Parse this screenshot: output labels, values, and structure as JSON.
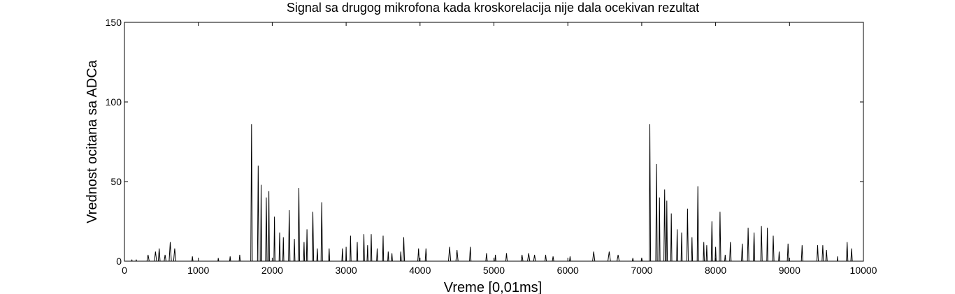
{
  "chart_data": {
    "type": "line",
    "title": "Signal sa drugog mikrofona kada kroskorelacija nije dala ocekivan rezultat",
    "xlabel": "Vreme [0,01ms]",
    "ylabel": "Vrednost ocitana sa ADCa",
    "xlim": [
      0,
      10000
    ],
    "ylim": [
      0,
      150
    ],
    "xticks": [
      "0",
      "1000",
      "2000",
      "3000",
      "4000",
      "5000",
      "6000",
      "7000",
      "8000",
      "9000",
      "10000"
    ],
    "yticks": [
      "0",
      "50",
      "100",
      "150"
    ],
    "grid": false,
    "line_color": "#000000",
    "series": [
      {
        "peaks": [
          [
            100,
            1,
            8
          ],
          [
            160,
            1,
            8
          ],
          [
            320,
            4,
            30
          ],
          [
            420,
            6,
            30
          ],
          [
            470,
            8,
            25
          ],
          [
            550,
            4,
            25
          ],
          [
            620,
            12,
            30
          ],
          [
            680,
            8,
            30
          ],
          [
            920,
            3,
            15
          ],
          [
            1270,
            2,
            10
          ],
          [
            1430,
            3,
            15
          ],
          [
            1560,
            4,
            15
          ],
          [
            1720,
            86,
            20
          ],
          [
            1810,
            60,
            20
          ],
          [
            1850,
            48,
            15
          ],
          [
            1920,
            40,
            20
          ],
          [
            1955,
            44,
            15
          ],
          [
            2030,
            28,
            15
          ],
          [
            2100,
            18,
            15
          ],
          [
            2150,
            15,
            15
          ],
          [
            2230,
            32,
            20
          ],
          [
            2300,
            14,
            15
          ],
          [
            2360,
            46,
            20
          ],
          [
            2430,
            12,
            15
          ],
          [
            2470,
            20,
            15
          ],
          [
            2550,
            31,
            20
          ],
          [
            2610,
            8,
            15
          ],
          [
            2670,
            37,
            20
          ],
          [
            2770,
            8,
            15
          ],
          [
            2950,
            8,
            15
          ],
          [
            3000,
            9,
            10
          ],
          [
            3060,
            16,
            15
          ],
          [
            3150,
            12,
            15
          ],
          [
            3240,
            17,
            15
          ],
          [
            3290,
            10,
            15
          ],
          [
            3340,
            17,
            15
          ],
          [
            3420,
            8,
            15
          ],
          [
            3500,
            16,
            15
          ],
          [
            3570,
            6,
            15
          ],
          [
            3620,
            5,
            15
          ],
          [
            3740,
            6,
            15
          ],
          [
            3780,
            15,
            20
          ],
          [
            3980,
            8,
            20
          ],
          [
            4080,
            8,
            20
          ],
          [
            4400,
            9,
            30
          ],
          [
            4500,
            7,
            30
          ],
          [
            4680,
            9,
            20
          ],
          [
            4900,
            5,
            20
          ],
          [
            5020,
            4,
            15
          ],
          [
            5170,
            5,
            20
          ],
          [
            5380,
            4,
            25
          ],
          [
            5470,
            5,
            30
          ],
          [
            5550,
            4,
            25
          ],
          [
            5700,
            4,
            20
          ],
          [
            5800,
            3,
            20
          ],
          [
            6030,
            3,
            15
          ],
          [
            6350,
            6,
            30
          ],
          [
            6560,
            6,
            35
          ],
          [
            6680,
            4,
            30
          ],
          [
            6880,
            2,
            15
          ],
          [
            7000,
            2,
            15
          ],
          [
            7110,
            86,
            20
          ],
          [
            7200,
            61,
            20
          ],
          [
            7240,
            40,
            15
          ],
          [
            7310,
            45,
            20
          ],
          [
            7340,
            38,
            15
          ],
          [
            7400,
            30,
            15
          ],
          [
            7480,
            20,
            15
          ],
          [
            7540,
            18,
            15
          ],
          [
            7620,
            33,
            20
          ],
          [
            7680,
            15,
            15
          ],
          [
            7760,
            47,
            20
          ],
          [
            7840,
            12,
            15
          ],
          [
            7880,
            10,
            15
          ],
          [
            7950,
            25,
            20
          ],
          [
            8000,
            9,
            15
          ],
          [
            8060,
            31,
            20
          ],
          [
            8130,
            4,
            15
          ],
          [
            8200,
            12,
            20
          ],
          [
            8360,
            11,
            20
          ],
          [
            8440,
            21,
            20
          ],
          [
            8520,
            18,
            20
          ],
          [
            8620,
            22,
            20
          ],
          [
            8700,
            21,
            15
          ],
          [
            8780,
            16,
            20
          ],
          [
            8860,
            6,
            15
          ],
          [
            8980,
            11,
            20
          ],
          [
            9170,
            10,
            20
          ],
          [
            9380,
            10,
            20
          ],
          [
            9450,
            10,
            20
          ],
          [
            9500,
            7,
            20
          ],
          [
            9650,
            3,
            10
          ],
          [
            9780,
            12,
            20
          ],
          [
            9840,
            8,
            20
          ]
        ]
      }
    ]
  }
}
